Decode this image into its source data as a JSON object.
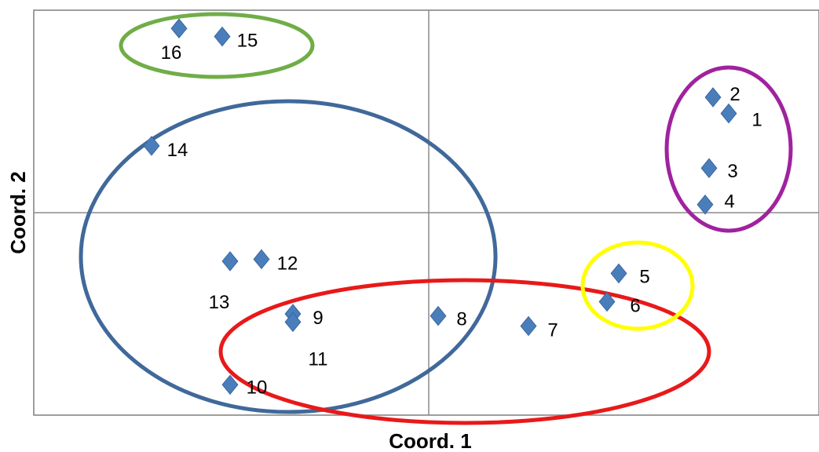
{
  "chart_data": {
    "type": "scatter",
    "title": "",
    "xlabel": "Coord. 1",
    "ylabel": "Coord. 2",
    "xlim": [
      -1.0,
      1.0
    ],
    "ylim": [
      -1.0,
      1.0
    ],
    "grid": false,
    "legend": "none",
    "marker": "diamond",
    "marker_color": "#4a7ebb",
    "points": [
      {
        "label": "1",
        "x": 0.77,
        "y": 0.49
      },
      {
        "label": "2",
        "x": 0.73,
        "y": 0.57
      },
      {
        "label": "3",
        "x": 0.72,
        "y": 0.22
      },
      {
        "label": "4",
        "x": 0.71,
        "y": 0.04
      },
      {
        "label": "5",
        "x": 0.49,
        "y": -0.3
      },
      {
        "label": "6",
        "x": 0.46,
        "y": -0.44
      },
      {
        "label": "7",
        "x": 0.26,
        "y": -0.56
      },
      {
        "label": "8",
        "x": 0.03,
        "y": -0.51
      },
      {
        "label": "9",
        "x": -0.34,
        "y": -0.5
      },
      {
        "label": "11",
        "x": -0.34,
        "y": -0.54
      },
      {
        "label": "10",
        "x": -0.5,
        "y": -0.85
      },
      {
        "label": "12",
        "x": -0.42,
        "y": -0.23
      },
      {
        "label": "13",
        "x": -0.5,
        "y": -0.24
      },
      {
        "label": "14",
        "x": -0.7,
        "y": 0.33
      },
      {
        "label": "15",
        "x": -0.52,
        "y": 0.87
      },
      {
        "label": "16",
        "x": -0.63,
        "y": 0.91
      }
    ],
    "groups": [
      {
        "color": "#70ad47",
        "members": [
          "15",
          "16"
        ]
      },
      {
        "color": "#40699a",
        "members": [
          "9",
          "10",
          "11",
          "12",
          "13",
          "14"
        ]
      },
      {
        "color": "#e8191a",
        "members": [
          "6",
          "7",
          "8",
          "9",
          "10",
          "11"
        ]
      },
      {
        "color": "#a0229e",
        "members": [
          "1",
          "2",
          "3",
          "4"
        ]
      },
      {
        "color": "#ffff00",
        "members": [
          "5",
          "6"
        ]
      }
    ]
  }
}
